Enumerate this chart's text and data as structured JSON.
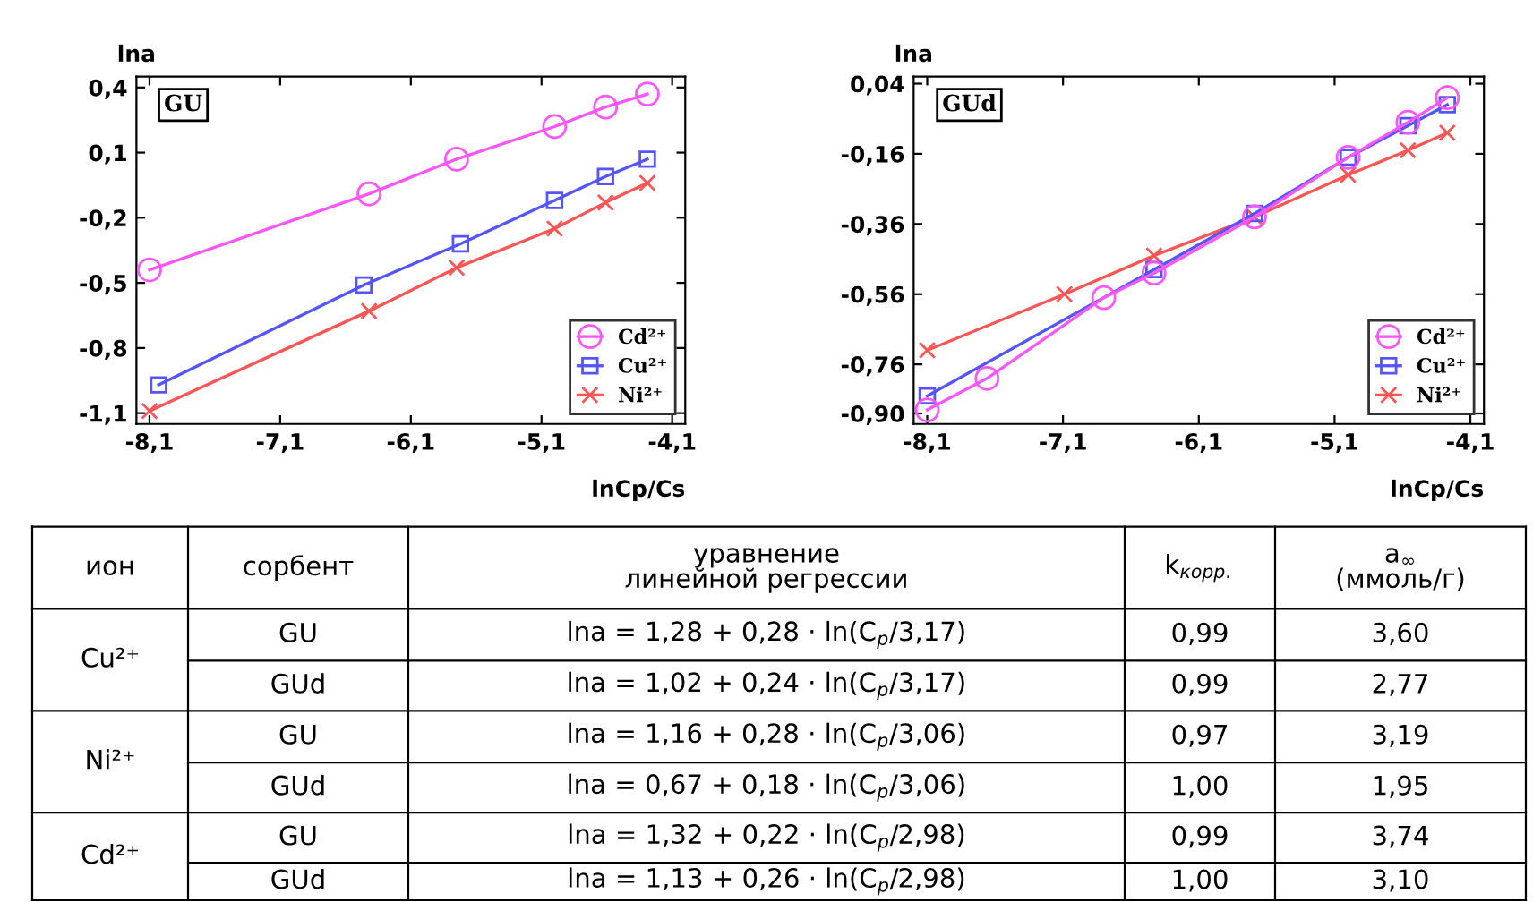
{
  "chart_data": [
    {
      "type": "line",
      "title": "GU",
      "xlabel": "lnCp/Cs",
      "ylabel": "lna",
      "legend": "lower right",
      "grid": false,
      "xlim": [
        -8.2,
        -4.0
      ],
      "ylim": [
        -1.15,
        0.45
      ],
      "xticks": [
        {
          "value": -8.1,
          "label": "-8,1"
        },
        {
          "value": -7.1,
          "label": "-7,1"
        },
        {
          "value": -6.1,
          "label": "-6,1"
        },
        {
          "value": -5.1,
          "label": "-5,1"
        },
        {
          "value": -4.1,
          "label": "-4,1"
        }
      ],
      "yticks": [
        {
          "value": 0.4,
          "label": "0,4"
        },
        {
          "value": 0.1,
          "label": "0,1"
        },
        {
          "value": -0.2,
          "label": "-0,2"
        },
        {
          "value": -0.5,
          "label": "-0,5"
        },
        {
          "value": -0.8,
          "label": "-0,8"
        },
        {
          "value": -1.1,
          "label": "-1,1"
        }
      ],
      "series": [
        {
          "name": "Cd²⁺",
          "color": "#ff55ff",
          "marker": "circle",
          "x": [
            -8.1,
            -6.42,
            -5.75,
            -5.0,
            -4.61,
            -4.29
          ],
          "values": [
            -0.44,
            -0.09,
            0.07,
            0.22,
            0.31,
            0.37
          ]
        },
        {
          "name": "Cu²⁺",
          "color": "#5555ff",
          "marker": "square",
          "x": [
            -8.03,
            -6.46,
            -5.72,
            -5.0,
            -4.61,
            -4.29
          ],
          "values": [
            -0.97,
            -0.51,
            -0.32,
            -0.12,
            -0.01,
            0.07
          ]
        },
        {
          "name": "Ni²⁺",
          "color": "#ff5555",
          "marker": "cross",
          "x": [
            -8.1,
            -6.42,
            -5.75,
            -5.0,
            -4.61,
            -4.29
          ],
          "values": [
            -1.09,
            -0.63,
            -0.43,
            -0.25,
            -0.13,
            -0.04
          ]
        }
      ]
    },
    {
      "type": "line",
      "title": "GUd",
      "xlabel": "lnCp/Cs",
      "ylabel": "lna",
      "legend": "lower right",
      "grid": false,
      "xlim": [
        -8.2,
        -4.0
      ],
      "ylim": [
        -0.93,
        0.06
      ],
      "xticks": [
        {
          "value": -8.1,
          "label": "-8,1"
        },
        {
          "value": -7.1,
          "label": "-7,1"
        },
        {
          "value": -6.1,
          "label": "-6,1"
        },
        {
          "value": -5.1,
          "label": "-5,1"
        },
        {
          "value": -4.1,
          "label": "-4,1"
        }
      ],
      "yticks": [
        {
          "value": 0.04,
          "label": "0,04"
        },
        {
          "value": -0.16,
          "label": "-0,16"
        },
        {
          "value": -0.36,
          "label": "-0,36"
        },
        {
          "value": -0.56,
          "label": "-0,56"
        },
        {
          "value": -0.76,
          "label": "-0,76"
        },
        {
          "value": -0.9,
          "label": "-0,90"
        }
      ],
      "series": [
        {
          "name": "Cd²⁺",
          "color": "#ff55ff",
          "marker": "circle",
          "x": [
            -8.1,
            -7.66,
            -6.8,
            -6.43,
            -5.69,
            -5.0,
            -4.56,
            -4.27
          ],
          "values": [
            -0.89,
            -0.8,
            -0.57,
            -0.5,
            -0.34,
            -0.17,
            -0.07,
            0.0
          ]
        },
        {
          "name": "Cu²⁺",
          "color": "#5555ff",
          "marker": "square",
          "x": [
            -8.1,
            -6.43,
            -5.69,
            -5.0,
            -4.56,
            -4.27
          ],
          "values": [
            -0.85,
            -0.49,
            -0.33,
            -0.17,
            -0.08,
            -0.02
          ]
        },
        {
          "name": "Ni²⁺",
          "color": "#ff5555",
          "marker": "cross",
          "x": [
            -8.1,
            -7.09,
            -6.43,
            -5.69,
            -5.0,
            -4.56,
            -4.27
          ],
          "values": [
            -0.72,
            -0.56,
            -0.45,
            -0.34,
            -0.22,
            -0.15,
            -0.1
          ]
        }
      ]
    },
    {
      "type": "other",
      "annotations": [
        "ион",
        "сорбент",
        "уравнение\nлинейной регрессии",
        "k$_{корр.}$",
        "a$_{∞}$\n(ммоль/г)",
        "Cu²⁺",
        "GU",
        "lna = 1,28 + 0,28 · ln(C$_{p}$/3,17)",
        "0,99",
        "3,60",
        "GUd",
        "lna = 1,02 + 0,24 · ln(C$_{p}$/3,17)",
        "0,99",
        "2,77",
        "Ni²⁺",
        "GU",
        "lna = 1,16 + 0,28 · ln(C$_{p}$/3,06)",
        "0,97",
        "3,19",
        "GUd",
        "lna = 0,67 + 0,18 · ln(C$_{p}$/3,06)",
        "1,00",
        "1,95",
        "Cd²⁺",
        "GU",
        "lna = 1,32 + 0,22 · ln(C$_{p}$/2,98)",
        "0,99",
        "3,74",
        "GUd",
        "lna = 1,13 + 0,26 · ln(C$_{p}$/2,98)",
        "1,00",
        "3,10"
      ]
    }
  ]
}
